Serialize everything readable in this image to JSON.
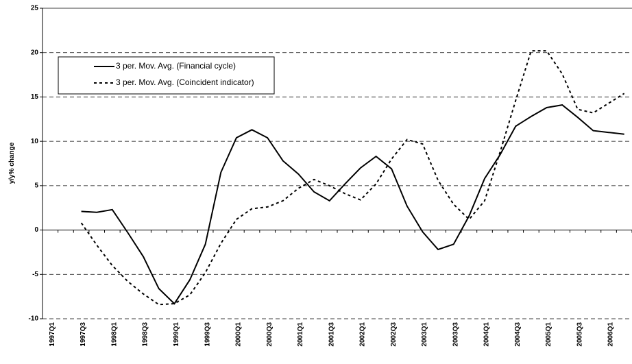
{
  "chart_data": {
    "type": "line",
    "ylabel": "y/y% change",
    "categories": [
      "1997Q1",
      null,
      "1997Q3",
      null,
      "1998Q1",
      null,
      "1998Q3",
      null,
      "1999Q1",
      null,
      "1999Q3",
      null,
      "2000Q1",
      null,
      "2000Q3",
      null,
      "2001Q1",
      null,
      "2001Q3",
      null,
      "2002Q1",
      null,
      "2002Q3",
      null,
      "2003Q1",
      null,
      "2003Q3",
      null,
      "2004Q1",
      null,
      "2004Q3",
      null,
      "2005Q1",
      null,
      "2005Q3",
      null,
      "2006Q1",
      null
    ],
    "series": [
      {
        "name": "3 per. Mov. Avg. (Financial cycle)",
        "color": "#000000",
        "line_style": "solid",
        "values": [
          null,
          null,
          2.1,
          2.0,
          2.3,
          -0.3,
          -3.0,
          -6.6,
          -8.3,
          -5.6,
          -1.6,
          6.5,
          10.4,
          11.3,
          10.4,
          7.8,
          6.3,
          4.3,
          3.3,
          5.2,
          7.0,
          8.3,
          6.9,
          2.7,
          -0.2,
          -2.2,
          -1.6,
          1.6,
          5.8,
          8.5,
          11.7,
          12.8,
          13.8,
          14.1,
          12.7,
          11.2,
          11.0,
          10.8
        ]
      },
      {
        "name": "3 per. Mov. Avg. (Coincident indicator)",
        "color": "#000000",
        "line_style": "dashed",
        "values": [
          null,
          null,
          0.8,
          -1.7,
          -4.0,
          -5.8,
          -7.2,
          -8.4,
          -8.3,
          -7.3,
          -4.8,
          -1.5,
          1.2,
          2.4,
          2.6,
          3.3,
          4.7,
          5.7,
          5.0,
          4.1,
          3.4,
          5.2,
          8.0,
          10.2,
          9.7,
          5.6,
          2.9,
          1.2,
          3.3,
          8.8,
          14.6,
          20.2,
          20.2,
          17.6,
          13.6,
          13.2,
          14.3,
          15.4
        ]
      }
    ],
    "ylim": [
      -10,
      25
    ],
    "yticks": [
      -10,
      -5,
      0,
      5,
      10,
      15,
      20,
      25
    ],
    "grid": true,
    "legend": "upper left"
  }
}
